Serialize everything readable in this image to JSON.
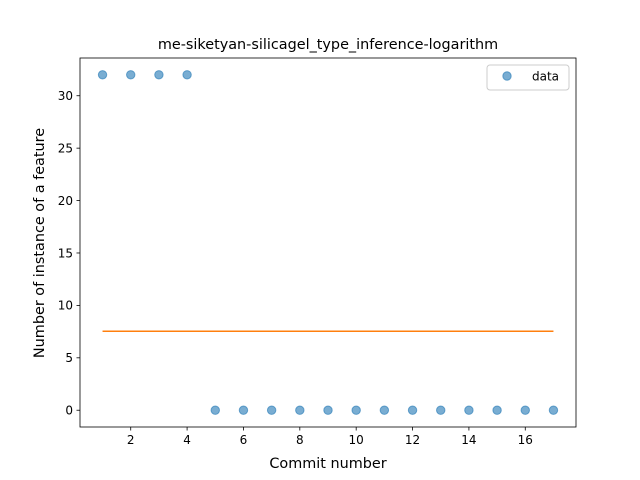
{
  "chart_data": {
    "type": "scatter",
    "title": "me-siketyan-silicagel_type_inference-logarithm",
    "xlabel": "Commit number",
    "ylabel": "Number of instance of a feature",
    "xlim": [
      0.2,
      17.8
    ],
    "ylim": [
      -1.6,
      33.6
    ],
    "xticks": [
      2,
      4,
      6,
      8,
      10,
      12,
      14,
      16
    ],
    "yticks": [
      0,
      5,
      10,
      15,
      20,
      25,
      30
    ],
    "legend_position": "top-right",
    "series": [
      {
        "name": "data",
        "kind": "scatter",
        "color": "#1f77b4",
        "x": [
          1,
          2,
          3,
          4,
          5,
          6,
          7,
          8,
          9,
          10,
          11,
          12,
          13,
          14,
          15,
          16,
          17
        ],
        "y": [
          32,
          32,
          32,
          32,
          0,
          0,
          0,
          0,
          0,
          0,
          0,
          0,
          0,
          0,
          0,
          0,
          0
        ]
      },
      {
        "kind": "line",
        "color": "#ff7f0e",
        "x": [
          1,
          17
        ],
        "y": [
          7.53,
          7.53
        ]
      }
    ]
  }
}
